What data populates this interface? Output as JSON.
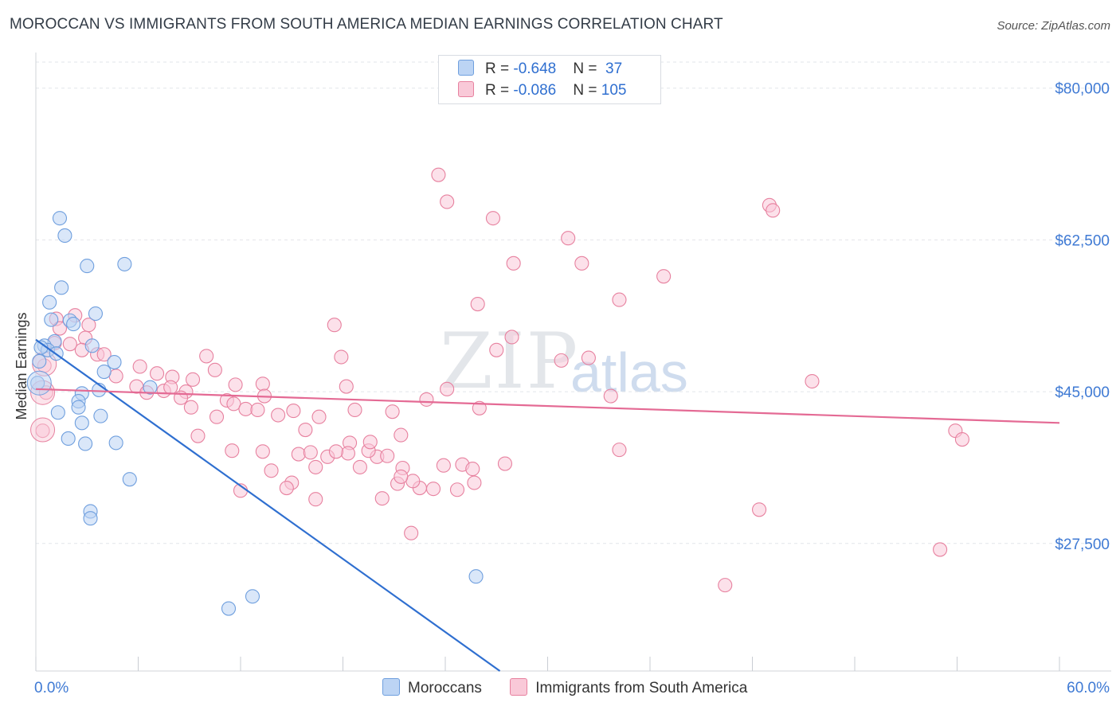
{
  "title": "MOROCCAN VS IMMIGRANTS FROM SOUTH AMERICA MEDIAN EARNINGS CORRELATION CHART",
  "source": "Source: ZipAtlas.com",
  "watermark": {
    "zip": "ZIP",
    "atlas": "atlas"
  },
  "legend_stats": [
    {
      "r_label": "R = ",
      "r_value": "-0.648",
      "n_label": "N = ",
      "n_value": " 37"
    },
    {
      "r_label": "R = ",
      "r_value": "-0.086",
      "n_label": "N = ",
      "n_value": "105"
    }
  ],
  "colors": {
    "moroccans_fill": "#bcd4f4",
    "moroccans_stroke": "#6f9fde",
    "moroccans_line": "#2f6fd0",
    "sa_fill": "#f9c9d8",
    "sa_stroke": "#e7819f",
    "sa_line": "#e46a94",
    "tick_label": "#3f7ad4",
    "grid": "#e2e5ea"
  },
  "chart_data": {
    "type": "scatter",
    "xlabel": "",
    "ylabel": "Median Earnings",
    "x_tick_labels": {
      "left": "0.0%",
      "right": "60.0%"
    },
    "xlim": [
      0,
      60
    ],
    "ylim": [
      12800,
      83000
    ],
    "y_ticks": [
      {
        "value": 80000,
        "label": "$80,000"
      },
      {
        "value": 62500,
        "label": "$62,500"
      },
      {
        "value": 45000,
        "label": "$45,000"
      },
      {
        "value": 27500,
        "label": "$27,500"
      }
    ],
    "series": [
      {
        "name": "Moroccans",
        "trend": {
          "x": [
            0,
            27.2
          ],
          "y": [
            51000,
            12800
          ]
        },
        "points": [
          [
            1.4,
            65000
          ],
          [
            1.7,
            63000
          ],
          [
            3.0,
            59500
          ],
          [
            5.2,
            59700
          ],
          [
            1.5,
            57000
          ],
          [
            0.8,
            55300
          ],
          [
            3.5,
            54000
          ],
          [
            0.9,
            53300
          ],
          [
            2.0,
            53200
          ],
          [
            2.2,
            52800
          ],
          [
            1.1,
            50800
          ],
          [
            0.5,
            50300
          ],
          [
            0.7,
            49800
          ],
          [
            3.3,
            50300
          ],
          [
            0.2,
            48500
          ],
          [
            4.0,
            47300
          ],
          [
            0.1,
            46000
          ],
          [
            3.7,
            45200
          ],
          [
            2.7,
            44800
          ],
          [
            6.7,
            45500
          ],
          [
            2.5,
            43900
          ],
          [
            2.5,
            43200
          ],
          [
            3.8,
            42200
          ],
          [
            1.3,
            42600
          ],
          [
            2.7,
            41400
          ],
          [
            1.9,
            39600
          ],
          [
            2.9,
            39000
          ],
          [
            4.7,
            39100
          ],
          [
            5.5,
            34900
          ],
          [
            3.2,
            31200
          ],
          [
            3.2,
            30400
          ],
          [
            25.8,
            23700
          ],
          [
            12.7,
            21400
          ],
          [
            11.3,
            20000
          ],
          [
            0.3,
            50100
          ],
          [
            1.2,
            49400
          ],
          [
            4.6,
            48400
          ]
        ]
      },
      {
        "name": "Immigrants from South America",
        "trend": {
          "x": [
            0,
            60
          ],
          "y": [
            45300,
            41400
          ]
        },
        "points": [
          [
            23.6,
            70000
          ],
          [
            24.1,
            66900
          ],
          [
            26.8,
            65000
          ],
          [
            31.2,
            62700
          ],
          [
            32.0,
            59800
          ],
          [
            28.0,
            59800
          ],
          [
            43.0,
            66500
          ],
          [
            43.2,
            65900
          ],
          [
            36.8,
            58300
          ],
          [
            34.2,
            55600
          ],
          [
            25.9,
            55100
          ],
          [
            2.3,
            53800
          ],
          [
            1.2,
            53400
          ],
          [
            3.1,
            52700
          ],
          [
            17.5,
            52700
          ],
          [
            1.4,
            52300
          ],
          [
            2.9,
            51200
          ],
          [
            1.1,
            50600
          ],
          [
            27.9,
            51300
          ],
          [
            27.0,
            49800
          ],
          [
            2.7,
            49800
          ],
          [
            3.6,
            49300
          ],
          [
            4.0,
            49300
          ],
          [
            10.0,
            49100
          ],
          [
            17.9,
            49000
          ],
          [
            30.8,
            48600
          ],
          [
            6.1,
            47900
          ],
          [
            10.5,
            47500
          ],
          [
            4.7,
            46800
          ],
          [
            7.1,
            47100
          ],
          [
            8.0,
            46700
          ],
          [
            9.2,
            46400
          ],
          [
            11.7,
            45800
          ],
          [
            13.3,
            45900
          ],
          [
            18.2,
            45600
          ],
          [
            5.9,
            45600
          ],
          [
            7.5,
            45100
          ],
          [
            7.9,
            45500
          ],
          [
            6.5,
            44900
          ],
          [
            8.8,
            45000
          ],
          [
            13.4,
            44500
          ],
          [
            8.5,
            44300
          ],
          [
            11.2,
            44000
          ],
          [
            11.6,
            43600
          ],
          [
            9.1,
            43200
          ],
          [
            12.3,
            43000
          ],
          [
            13.0,
            42900
          ],
          [
            15.1,
            42800
          ],
          [
            10.6,
            42100
          ],
          [
            14.2,
            42300
          ],
          [
            16.6,
            42100
          ],
          [
            18.7,
            42900
          ],
          [
            20.9,
            42700
          ],
          [
            22.9,
            44100
          ],
          [
            26.0,
            43100
          ],
          [
            33.7,
            44500
          ],
          [
            24.1,
            45300
          ],
          [
            21.4,
            40000
          ],
          [
            15.8,
            40600
          ],
          [
            9.5,
            39900
          ],
          [
            11.5,
            38200
          ],
          [
            13.3,
            38100
          ],
          [
            15.4,
            37800
          ],
          [
            16.1,
            38000
          ],
          [
            17.1,
            37500
          ],
          [
            16.4,
            36300
          ],
          [
            19.0,
            36300
          ],
          [
            20.0,
            37500
          ],
          [
            19.5,
            38200
          ],
          [
            21.5,
            36200
          ],
          [
            23.9,
            36500
          ],
          [
            25.0,
            36600
          ],
          [
            25.6,
            36100
          ],
          [
            27.5,
            36700
          ],
          [
            34.2,
            38300
          ],
          [
            18.4,
            39100
          ],
          [
            21.2,
            34400
          ],
          [
            22.5,
            33900
          ],
          [
            22.1,
            34700
          ],
          [
            23.3,
            33800
          ],
          [
            15.0,
            34500
          ],
          [
            14.7,
            33900
          ],
          [
            16.4,
            32600
          ],
          [
            12.0,
            33600
          ],
          [
            13.8,
            35900
          ],
          [
            20.3,
            32700
          ],
          [
            22.0,
            28700
          ],
          [
            21.4,
            35200
          ],
          [
            20.6,
            37600
          ],
          [
            18.3,
            37900
          ],
          [
            19.6,
            39200
          ],
          [
            17.6,
            38100
          ],
          [
            25.7,
            34500
          ],
          [
            40.4,
            22700
          ],
          [
            53.0,
            26800
          ],
          [
            42.4,
            31400
          ],
          [
            45.5,
            46200
          ],
          [
            53.9,
            40500
          ],
          [
            54.3,
            39500
          ],
          [
            2.0,
            50500
          ],
          [
            0.5,
            48000
          ],
          [
            0.6,
            44900
          ],
          [
            0.4,
            40500
          ],
          [
            32.4,
            48900
          ],
          [
            24.7,
            33700
          ]
        ]
      }
    ],
    "grid": true,
    "legend_position": "top-center and bottom"
  },
  "legend_bottom": [
    {
      "label": "Moroccans"
    },
    {
      "label": "Immigrants from South America"
    }
  ]
}
